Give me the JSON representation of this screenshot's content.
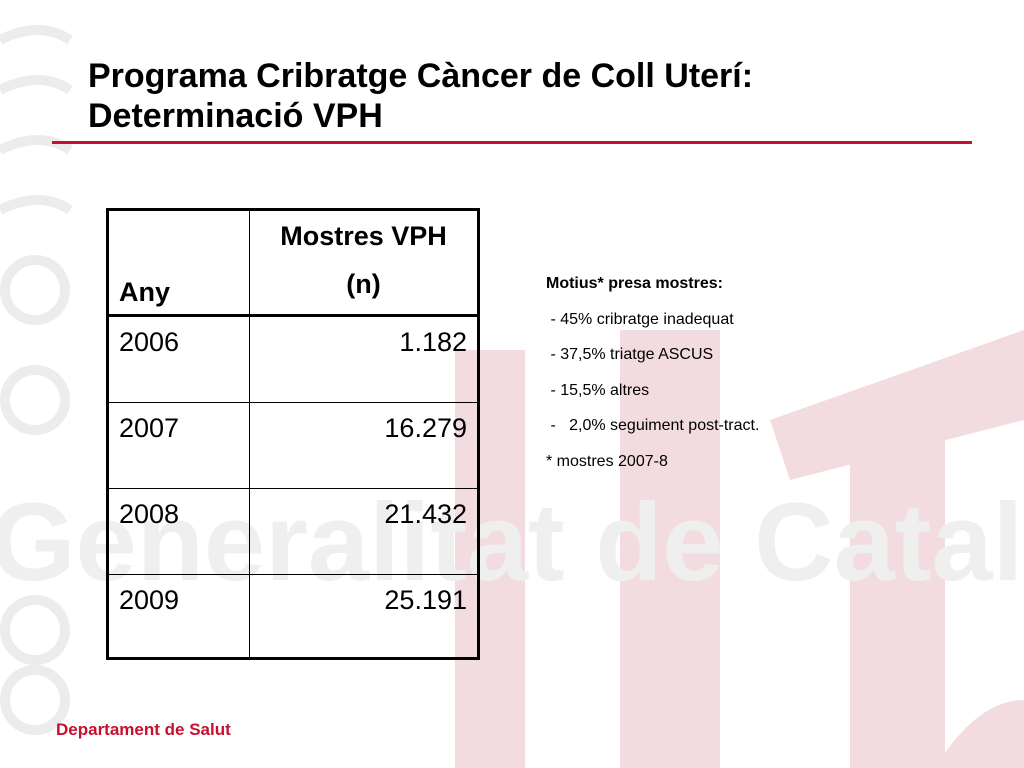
{
  "title": {
    "line1": "Programa Cribratge Càncer de Coll Uterí:",
    "line2": "Determinació VPH"
  },
  "table": {
    "headers": {
      "year": "Any",
      "samples_line1": "Mostres VPH",
      "samples_line2": "(n)"
    },
    "rows": [
      {
        "year": "2006",
        "samples": "1.182"
      },
      {
        "year": "2007",
        "samples": "16.279"
      },
      {
        "year": "2008",
        "samples": "21.432"
      },
      {
        "year": "2009",
        "samples": "25.191"
      }
    ]
  },
  "notes": {
    "heading": "Motius* presa mostres:",
    "items": [
      " - 45% cribratge inadequat",
      " - 37,5% triatge ASCUS",
      " - 15,5% altres",
      " -   2,0% seguiment post-tract."
    ],
    "footnote": "* mostres 2007-8"
  },
  "footer": "Departament de Salut",
  "watermark": "Generalitat de Catalunya",
  "colors": {
    "accent": "#c8102e",
    "watermark_red": "#f3dcdf",
    "watermark_grey": "#ededed"
  }
}
